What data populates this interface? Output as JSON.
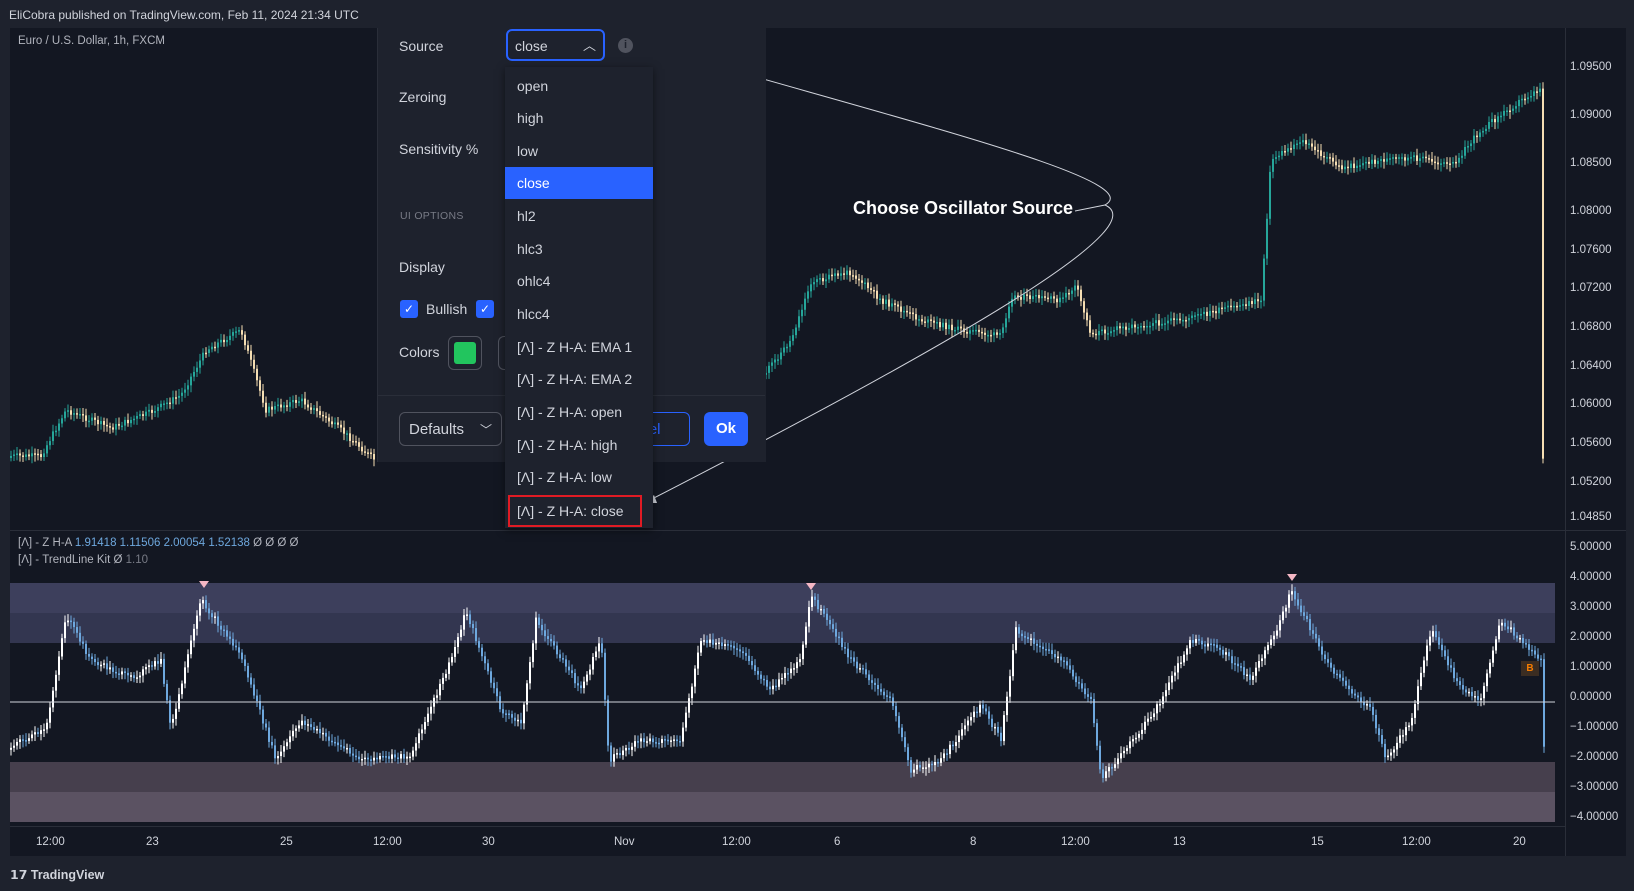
{
  "header": {
    "publish_info": "EliCobra published on TradingView.com, Feb 11, 2024 21:34 UTC"
  },
  "main_pane": {
    "symbol": "Euro / U.S. Dollar, 1h, FXCM",
    "price_axis": [
      "1.09500",
      "1.09000",
      "1.08500",
      "1.08000",
      "1.07600",
      "1.07200",
      "1.06800",
      "1.06400",
      "1.06000",
      "1.05600",
      "1.05200",
      "1.04850"
    ]
  },
  "indicator_pane": {
    "legend1_name": "[Λ] - Z H-A",
    "legend1_values": "1.91418  1.11506  2.00054  1.52138",
    "legend1_tail": "Ø  Ø  Ø  Ø",
    "legend2_name": "[Λ] - TrendLine Kit",
    "legend2_tail": "Ø",
    "legend2_value": "1.10",
    "value_axis": [
      "5.00000",
      "4.00000",
      "3.00000",
      "2.00000",
      "1.00000",
      "0.00000",
      "−1.00000",
      "−2.00000",
      "−3.00000",
      "−4.00000"
    ],
    "badge": "B"
  },
  "time_axis": [
    "12:00",
    "23",
    "25",
    "12:00",
    "30",
    "Nov",
    "12:00",
    "6",
    "8",
    "12:00",
    "13",
    "15",
    "12:00",
    "20"
  ],
  "footer": {
    "brand": "TradingView"
  },
  "annotation": {
    "text": "Choose Oscillator Source"
  },
  "settings_dialog": {
    "source_label": "Source",
    "source_value": "close",
    "zeroing_label": "Zeroing",
    "sensitivity_label": "Sensitivity %",
    "ui_options_label": "UI OPTIONS",
    "display_label": "Display",
    "bullish_label": "Bullish",
    "colors_label": "Colors",
    "defaults_label": "Defaults",
    "cancel_label": "ncel",
    "ok_label": "Ok",
    "source_options": [
      {
        "label": "open"
      },
      {
        "label": "high"
      },
      {
        "label": "low"
      },
      {
        "label": "close",
        "selected": true
      },
      {
        "label": "hl2"
      },
      {
        "label": "hlc3"
      },
      {
        "label": "ohlc4"
      },
      {
        "label": "hlcc4"
      },
      {
        "label": "[Λ] - Z H-A: EMA 1"
      },
      {
        "label": "[Λ] - Z H-A: EMA 2"
      },
      {
        "label": "[Λ] - Z H-A: open"
      },
      {
        "label": "[Λ] - Z H-A: high"
      },
      {
        "label": "[Λ] - Z H-A: low"
      },
      {
        "label": "[Λ] - Z H-A: close",
        "highlighted": true
      }
    ]
  },
  "colors": {
    "accent": "#2962ff",
    "bull_candle": "#26a69a",
    "bear_candle": "#f5deb3",
    "oscillator_bear": "#6ea8de",
    "oscillator_bull": "#ffffff",
    "upper_zone": "#3d3f5c",
    "lower_zone": "#5b5262",
    "highlight_box": "#e01b24"
  }
}
